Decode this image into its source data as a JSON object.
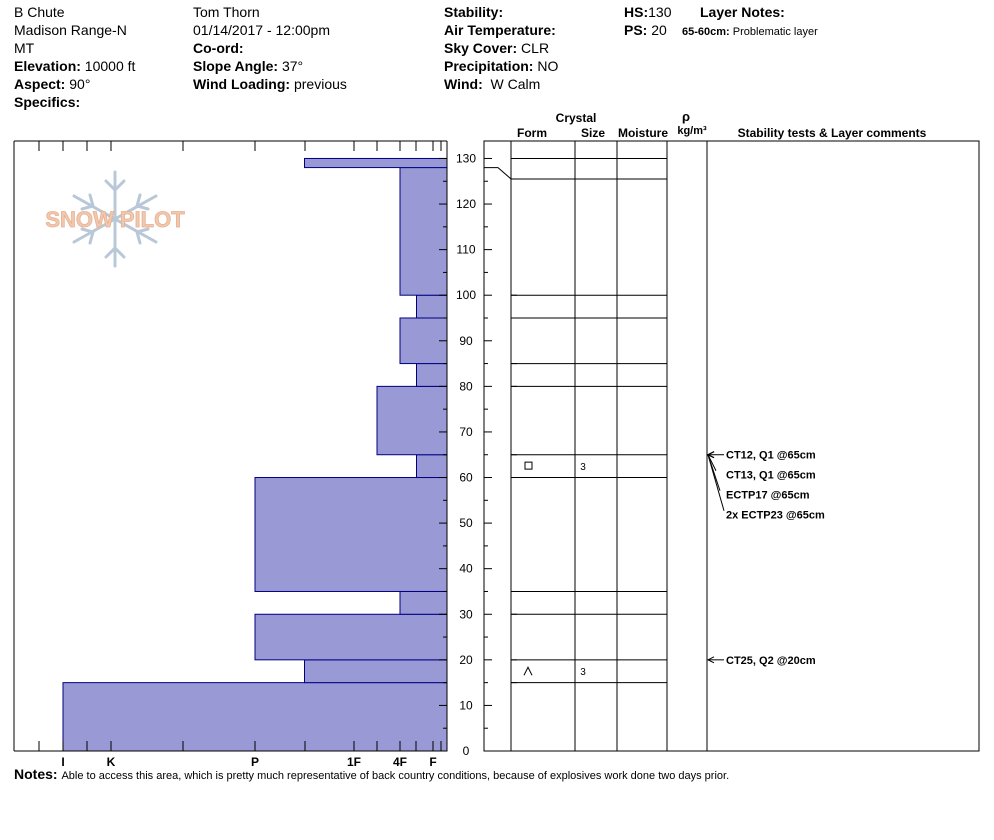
{
  "header": {
    "location": "B Chute",
    "range": "Madison Range-N",
    "state": "MT",
    "elevation_label": "Elevation:",
    "elevation": "10000 ft",
    "aspect_label": "Aspect:",
    "aspect": "90°",
    "specifics_label": "Specifics:",
    "observer": "Tom Thorn",
    "datetime": "01/14/2017 - 12:00pm",
    "coord_label": "Co-ord:",
    "slope_label": "Slope Angle:",
    "slope": "37°",
    "wind_loading_label": "Wind Loading:",
    "wind_loading": "previous",
    "stability_label": "Stability:",
    "air_temp_label": "Air Temperature:",
    "sky_label": "Sky Cover:",
    "sky": "CLR",
    "precip_label": "Precipitation:",
    "precip": "NO",
    "wind_label": "Wind:",
    "wind": "W Calm",
    "hs_label": "HS:",
    "hs": "130",
    "ps_label": "PS:",
    "ps": "20",
    "layer_notes_label": "Layer Notes:",
    "layer_note_range": "65-60cm:",
    "layer_note_text": "Problematic layer"
  },
  "columns": {
    "crystal": "Crystal",
    "form": "Form",
    "size": "Size",
    "moisture": "Moisture",
    "rho": "ρ",
    "density_unit": "kg/m³",
    "stability": "Stability tests & Layer comments"
  },
  "logo_text": "SNOW PILOT",
  "notes_label": "Notes:",
  "notes": "Able to access this area, which is pretty much representative of back country conditions, because of explosives work done two days prior.",
  "colors": {
    "bar_fill": "#9999d6",
    "bar_edge": "#000080",
    "logo_text": "#f0c8b0",
    "logo_flake": "#b8c8d8"
  },
  "chart_data": {
    "type": "bar",
    "orientation": "horizontal",
    "xlabel": "",
    "ylabel": "",
    "ylim": [
      0,
      130
    ],
    "y_ticks": [
      0,
      10,
      20,
      30,
      40,
      50,
      60,
      70,
      80,
      90,
      100,
      110,
      120,
      130
    ],
    "hardness_ticks": [
      "I",
      "K",
      "P",
      "1F",
      "4F",
      "F"
    ],
    "hardness_profile": [
      {
        "bottom": 0,
        "top": 15,
        "hardness": "I"
      },
      {
        "bottom": 15,
        "top": 20,
        "hardness": "1F+"
      },
      {
        "bottom": 20,
        "top": 30,
        "hardness": "P"
      },
      {
        "bottom": 30,
        "top": 35,
        "hardness": "4F"
      },
      {
        "bottom": 35,
        "top": 60,
        "hardness": "P"
      },
      {
        "bottom": 60,
        "top": 65,
        "hardness": "4F-"
      },
      {
        "bottom": 65,
        "top": 80,
        "hardness": "1F-"
      },
      {
        "bottom": 80,
        "top": 85,
        "hardness": "F+"
      },
      {
        "bottom": 85,
        "top": 95,
        "hardness": "4F"
      },
      {
        "bottom": 95,
        "top": 100,
        "hardness": "F+"
      },
      {
        "bottom": 100,
        "top": 128,
        "hardness": "4F"
      },
      {
        "bottom": 128,
        "top": 130,
        "hardness": "1F+"
      }
    ],
    "layer_boundaries": [
      130,
      128,
      125.5,
      100,
      95,
      85,
      80,
      65,
      60,
      35,
      30,
      20,
      15
    ],
    "crystals": [
      {
        "bottom": 60,
        "top": 65,
        "form": "square",
        "size": "3"
      },
      {
        "bottom": 15,
        "top": 20,
        "form": "caret",
        "size": "3"
      }
    ],
    "stability_tests": [
      {
        "text": "CT12, Q1 @65cm",
        "depth": 65
      },
      {
        "text": "CT13, Q1 @65cm",
        "depth": 65
      },
      {
        "text": "ECTP17 @65cm",
        "depth": 65
      },
      {
        "text": "2x ECTP23 @65cm",
        "depth": 65
      },
      {
        "text": "CT25, Q2 @20cm",
        "depth": 20
      }
    ]
  }
}
